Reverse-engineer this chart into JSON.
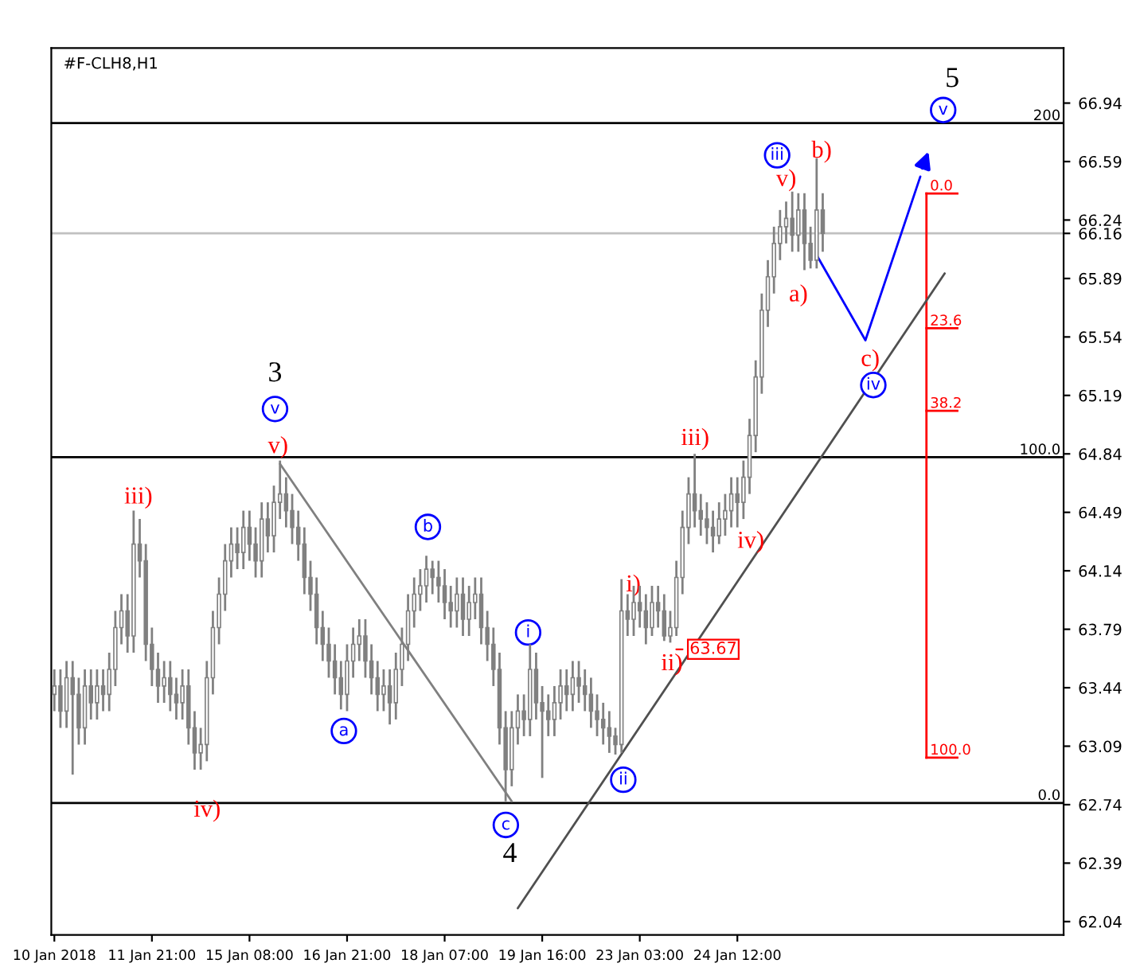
{
  "chart_data": {
    "type": "candlestick",
    "title": "#F-CLH8,H1",
    "ylim": [
      61.96,
      67.27
    ],
    "yticks": [
      62.04,
      62.39,
      62.74,
      63.09,
      63.44,
      63.79,
      64.14,
      64.49,
      64.84,
      65.19,
      65.54,
      65.89,
      66.24,
      66.59,
      66.94,
      {
        "value": 66.16,
        "label": "66.16"
      }
    ],
    "grid": false,
    "legend": false,
    "categories": [
      "10 Jan 2018",
      null,
      null,
      null,
      null,
      null,
      null,
      null,
      null,
      null,
      null,
      null,
      null,
      null,
      null,
      null,
      "11 Jan 21:00",
      null,
      null,
      null,
      null,
      null,
      null,
      null,
      null,
      null,
      null,
      null,
      null,
      null,
      null,
      null,
      "15 Jan 08:00",
      null,
      null,
      null,
      null,
      null,
      null,
      null,
      null,
      null,
      null,
      null,
      null,
      null,
      null,
      null,
      "16 Jan 21:00",
      null,
      null,
      null,
      null,
      null,
      null,
      null,
      null,
      null,
      null,
      null,
      null,
      null,
      null,
      null,
      "18 Jan 07:00",
      null,
      null,
      null,
      null,
      null,
      null,
      null,
      null,
      null,
      null,
      null,
      null,
      null,
      null,
      null,
      "19 Jan 16:00",
      null,
      null,
      null,
      null,
      null,
      null,
      null,
      null,
      null,
      null,
      null,
      null,
      null,
      null,
      null,
      "23 Jan 03:00",
      null,
      null,
      null,
      null,
      null,
      null,
      null,
      null,
      null,
      null,
      null,
      null,
      null,
      null,
      null,
      "24 Jan 12:00",
      null,
      null,
      null,
      null,
      null,
      null,
      null,
      null,
      null,
      null,
      null,
      null,
      null,
      null,
      null,
      null,
      null,
      null,
      null,
      null,
      null,
      null,
      null,
      null,
      null,
      null,
      null,
      null,
      null,
      null,
      null,
      null,
      null,
      null,
      null,
      null,
      null,
      null,
      null,
      null,
      null,
      null,
      null,
      null,
      null,
      null,
      null,
      null,
      null,
      null,
      null,
      null,
      null
    ],
    "color": "#808080",
    "ohlc": [
      [
        63.4,
        63.55,
        63.3,
        63.45
      ],
      [
        63.45,
        63.55,
        63.2,
        63.3
      ],
      [
        63.3,
        63.6,
        63.2,
        63.5
      ],
      [
        63.5,
        63.6,
        62.92,
        63.4
      ],
      [
        63.4,
        63.5,
        63.1,
        63.2
      ],
      [
        63.2,
        63.55,
        63.1,
        63.45
      ],
      [
        63.45,
        63.55,
        63.25,
        63.35
      ],
      [
        63.35,
        63.55,
        63.25,
        63.45
      ],
      [
        63.45,
        63.55,
        63.3,
        63.4
      ],
      [
        63.4,
        63.65,
        63.3,
        63.55
      ],
      [
        63.55,
        63.9,
        63.45,
        63.8
      ],
      [
        63.8,
        64.0,
        63.7,
        63.9
      ],
      [
        63.9,
        64.0,
        63.65,
        63.75
      ],
      [
        63.75,
        64.5,
        63.65,
        64.3
      ],
      [
        64.3,
        64.45,
        64.1,
        64.2
      ],
      [
        64.2,
        64.3,
        63.6,
        63.7
      ],
      [
        63.7,
        63.8,
        63.45,
        63.55
      ],
      [
        63.55,
        63.65,
        63.35,
        63.45
      ],
      [
        63.45,
        63.6,
        63.35,
        63.5
      ],
      [
        63.5,
        63.6,
        63.3,
        63.4
      ],
      [
        63.4,
        63.5,
        63.25,
        63.35
      ],
      [
        63.35,
        63.55,
        63.25,
        63.45
      ],
      [
        63.45,
        63.55,
        63.1,
        63.2
      ],
      [
        63.2,
        63.3,
        62.95,
        63.05
      ],
      [
        63.05,
        63.2,
        62.95,
        63.1
      ],
      [
        63.1,
        63.6,
        63.0,
        63.5
      ],
      [
        63.5,
        63.9,
        63.4,
        63.8
      ],
      [
        63.8,
        64.1,
        63.7,
        64.0
      ],
      [
        64.0,
        64.3,
        63.9,
        64.2
      ],
      [
        64.2,
        64.4,
        64.1,
        64.3
      ],
      [
        64.3,
        64.4,
        64.15,
        64.25
      ],
      [
        64.25,
        64.5,
        64.15,
        64.4
      ],
      [
        64.4,
        64.5,
        64.2,
        64.3
      ],
      [
        64.3,
        64.4,
        64.1,
        64.2
      ],
      [
        64.2,
        64.55,
        64.1,
        64.45
      ],
      [
        64.45,
        64.55,
        64.25,
        64.35
      ],
      [
        64.35,
        64.65,
        64.25,
        64.55
      ],
      [
        64.55,
        64.8,
        64.45,
        64.6
      ],
      [
        64.6,
        64.7,
        64.4,
        64.5
      ],
      [
        64.5,
        64.6,
        64.3,
        64.4
      ],
      [
        64.4,
        64.5,
        64.2,
        64.3
      ],
      [
        64.3,
        64.4,
        64.0,
        64.1
      ],
      [
        64.1,
        64.2,
        63.9,
        64.0
      ],
      [
        64.0,
        64.1,
        63.7,
        63.8
      ],
      [
        63.8,
        63.9,
        63.6,
        63.7
      ],
      [
        63.7,
        63.8,
        63.5,
        63.6
      ],
      [
        63.6,
        63.7,
        63.4,
        63.5
      ],
      [
        63.5,
        63.6,
        63.31,
        63.4
      ],
      [
        63.4,
        63.7,
        63.3,
        63.6
      ],
      [
        63.6,
        63.8,
        63.5,
        63.7
      ],
      [
        63.7,
        63.85,
        63.6,
        63.75
      ],
      [
        63.75,
        63.85,
        63.5,
        63.6
      ],
      [
        63.6,
        63.7,
        63.4,
        63.5
      ],
      [
        63.5,
        63.6,
        63.3,
        63.4
      ],
      [
        63.4,
        63.55,
        63.3,
        63.45
      ],
      [
        63.45,
        63.55,
        63.22,
        63.35
      ],
      [
        63.35,
        63.65,
        63.25,
        63.55
      ],
      [
        63.55,
        63.8,
        63.45,
        63.7
      ],
      [
        63.7,
        64.0,
        63.6,
        63.9
      ],
      [
        63.9,
        64.1,
        63.8,
        64.0
      ],
      [
        64.0,
        64.15,
        63.9,
        64.05
      ],
      [
        64.05,
        64.23,
        63.95,
        64.15
      ],
      [
        64.15,
        64.2,
        64.0,
        64.1
      ],
      [
        64.1,
        64.2,
        63.95,
        64.05
      ],
      [
        64.05,
        64.15,
        63.85,
        63.95
      ],
      [
        63.95,
        64.05,
        63.8,
        63.9
      ],
      [
        63.9,
        64.1,
        63.8,
        64.0
      ],
      [
        64.0,
        64.1,
        63.75,
        63.85
      ],
      [
        63.85,
        64.05,
        63.75,
        63.95
      ],
      [
        63.95,
        64.1,
        63.85,
        64.0
      ],
      [
        64.0,
        64.1,
        63.7,
        63.8
      ],
      [
        63.8,
        63.9,
        63.6,
        63.7
      ],
      [
        63.7,
        63.8,
        63.45,
        63.55
      ],
      [
        63.55,
        63.65,
        63.1,
        63.2
      ],
      [
        63.2,
        63.3,
        62.76,
        62.95
      ],
      [
        62.95,
        63.3,
        62.85,
        63.2
      ],
      [
        63.2,
        63.4,
        63.1,
        63.3
      ],
      [
        63.3,
        63.4,
        63.15,
        63.25
      ],
      [
        63.25,
        63.7,
        63.15,
        63.55
      ],
      [
        63.55,
        63.65,
        63.25,
        63.35
      ],
      [
        63.35,
        63.45,
        62.9,
        63.3
      ],
      [
        63.3,
        63.4,
        63.15,
        63.25
      ],
      [
        63.25,
        63.45,
        63.15,
        63.35
      ],
      [
        63.35,
        63.55,
        63.25,
        63.45
      ],
      [
        63.45,
        63.55,
        63.3,
        63.4
      ],
      [
        63.4,
        63.6,
        63.3,
        63.5
      ],
      [
        63.5,
        63.6,
        63.35,
        63.45
      ],
      [
        63.45,
        63.55,
        63.3,
        63.4
      ],
      [
        63.4,
        63.5,
        63.2,
        63.3
      ],
      [
        63.3,
        63.4,
        63.15,
        63.25
      ],
      [
        63.25,
        63.35,
        63.1,
        63.2
      ],
      [
        63.2,
        63.3,
        63.05,
        63.15
      ],
      [
        63.15,
        63.2,
        63.04,
        63.1
      ],
      [
        63.1,
        64.09,
        63.05,
        63.9
      ],
      [
        63.9,
        64.0,
        63.75,
        63.85
      ],
      [
        63.85,
        64.05,
        63.75,
        63.95
      ],
      [
        63.95,
        64.05,
        63.8,
        63.9
      ],
      [
        63.9,
        64.0,
        63.7,
        63.8
      ],
      [
        63.8,
        64.05,
        63.75,
        63.95
      ],
      [
        63.95,
        64.05,
        63.8,
        63.9
      ],
      [
        63.9,
        64.0,
        63.72,
        63.75
      ],
      [
        63.75,
        63.9,
        63.71,
        63.8
      ],
      [
        63.8,
        64.2,
        63.75,
        64.1
      ],
      [
        64.1,
        64.5,
        64.0,
        64.4
      ],
      [
        64.4,
        64.7,
        64.3,
        64.6
      ],
      [
        64.6,
        64.84,
        64.4,
        64.5
      ],
      [
        64.5,
        64.6,
        64.35,
        64.45
      ],
      [
        64.45,
        64.55,
        64.3,
        64.4
      ],
      [
        64.4,
        64.5,
        64.25,
        64.35
      ],
      [
        64.35,
        64.55,
        64.3,
        64.45
      ],
      [
        64.45,
        64.6,
        64.35,
        64.5
      ],
      [
        64.5,
        64.7,
        64.4,
        64.6
      ],
      [
        64.6,
        64.7,
        64.4,
        64.55
      ],
      [
        64.55,
        64.8,
        64.45,
        64.7
      ],
      [
        64.7,
        65.05,
        64.6,
        64.95
      ],
      [
        64.95,
        65.4,
        64.85,
        65.3
      ],
      [
        65.3,
        65.8,
        65.2,
        65.7
      ],
      [
        65.7,
        66.0,
        65.6,
        65.9
      ],
      [
        65.9,
        66.2,
        65.8,
        66.1
      ],
      [
        66.1,
        66.3,
        66.0,
        66.2
      ],
      [
        66.2,
        66.35,
        66.1,
        66.25
      ],
      [
        66.25,
        66.41,
        66.05,
        66.15
      ],
      [
        66.15,
        66.4,
        66.05,
        66.3
      ],
      [
        66.3,
        66.4,
        65.94,
        66.1
      ],
      [
        66.1,
        66.2,
        65.95,
        66.0
      ],
      [
        66.0,
        66.61,
        65.95,
        66.3
      ],
      [
        66.3,
        66.4,
        66.05,
        66.16
      ],
      null,
      null,
      null,
      null,
      null,
      null,
      null,
      null,
      null,
      null,
      null,
      null,
      null,
      null,
      null,
      null,
      null,
      null,
      null,
      null,
      null,
      null,
      null,
      null,
      null,
      null,
      null,
      null,
      null,
      null,
      null,
      null,
      null,
      null,
      null,
      null,
      null,
      null,
      null
    ],
    "ref_lines": [
      {
        "axis": "y",
        "value": 66.82,
        "color": "#000000"
      },
      {
        "axis": "y",
        "value": 64.82,
        "color": "#000000"
      },
      {
        "axis": "y",
        "value": 62.75,
        "color": "#000000"
      },
      {
        "axis": "y",
        "value": 66.16,
        "color": "#c0c0c0"
      }
    ],
    "annotations": [
      "3",
      "4",
      "5",
      "v",
      "a",
      "b",
      "c",
      "i",
      "ii",
      "iii",
      "iv",
      "v",
      "iii)",
      "iv)",
      "v)",
      "i)",
      "ii)",
      "iii)",
      "iv)",
      "v)",
      "a)",
      "b)",
      "c)",
      {
        "text": "200",
        "y": 66.82
      },
      {
        "text": "100.0",
        "y": 64.82
      },
      {
        "text": "0.0",
        "y": 62.75
      },
      "0.0",
      "23.6",
      "38.2",
      "100.0",
      {
        "text": "63.67",
        "y": 63.67
      }
    ],
    "series": [
      {
        "type": "line",
        "color": "#808080",
        "values": [
          null,
          null,
          null,
          null,
          null,
          null,
          null,
          null,
          null,
          null,
          null,
          null,
          null,
          null,
          null,
          null,
          null,
          null,
          null,
          null,
          null,
          null,
          null,
          null,
          null,
          null,
          null,
          null,
          null,
          null,
          null,
          null,
          null,
          null,
          null,
          null,
          null,
          64.78,
          null,
          null,
          null,
          null,
          null,
          null,
          null,
          null,
          null,
          null,
          null,
          null,
          null,
          null,
          null,
          null,
          null,
          null,
          null,
          null,
          null,
          null,
          null,
          null,
          null,
          null,
          null,
          null,
          null,
          null,
          null,
          null,
          null,
          null,
          null,
          null,
          null,
          62.76,
          null,
          null,
          null,
          null,
          null,
          null,
          null,
          null,
          null,
          null,
          null,
          null,
          null,
          null,
          null,
          null,
          null,
          null,
          null,
          null,
          null,
          null,
          null,
          null,
          null,
          null,
          null,
          null,
          null,
          null,
          null,
          null,
          null,
          null,
          null,
          null,
          null,
          null,
          null,
          null,
          null,
          null,
          null,
          null,
          null,
          null,
          null,
          null,
          null,
          null,
          null,
          null,
          null,
          null,
          null,
          null,
          null,
          null,
          null,
          null,
          null,
          null,
          null,
          null,
          null,
          null,
          null,
          null,
          null,
          null,
          null,
          null,
          null,
          null,
          null,
          null,
          null,
          null,
          null,
          null,
          null,
          null,
          null,
          null,
          null,
          null,
          null,
          null,
          null,
          null
        ]
      },
      {
        "type": "line",
        "color": "#505050",
        "values": [
          null,
          null,
          null,
          null,
          null,
          null,
          null,
          null,
          null,
          null,
          null,
          null,
          null,
          null,
          null,
          null,
          null,
          null,
          null,
          null,
          null,
          null,
          null,
          null,
          null,
          null,
          null,
          null,
          null,
          null,
          null,
          null,
          null,
          null,
          null,
          null,
          null,
          null,
          null,
          null,
          null,
          null,
          null,
          null,
          null,
          null,
          null,
          null,
          null,
          null,
          null,
          null,
          null,
          null,
          null,
          null,
          null,
          null,
          null,
          null,
          null,
          null,
          null,
          null,
          null,
          null,
          null,
          null,
          null,
          null,
          null,
          null,
          null,
          null,
          null,
          null,
          62.12,
          null,
          null,
          null,
          null,
          null,
          null,
          null,
          null,
          null,
          null,
          null,
          null,
          null,
          null,
          null,
          null,
          null,
          null,
          null,
          null,
          null,
          null,
          null,
          null,
          null,
          null,
          null,
          null,
          null,
          null,
          null,
          null,
          null,
          null,
          null,
          null,
          null,
          null,
          null,
          null,
          null,
          null,
          null,
          null,
          null,
          null,
          null,
          null,
          null,
          null,
          null,
          null,
          null,
          null,
          null,
          null,
          null,
          null,
          null,
          null,
          null,
          null,
          null,
          null,
          null,
          null,
          null,
          null,
          null,
          65.92,
          null,
          null,
          null,
          null,
          null,
          null,
          null,
          null,
          null,
          null,
          null,
          null,
          null,
          null,
          null,
          null,
          null,
          null,
          null
        ]
      },
      {
        "type": "line",
        "color": "#0000ff",
        "values": [
          null,
          null,
          null,
          null,
          null,
          null,
          null,
          null,
          null,
          null,
          null,
          null,
          null,
          null,
          null,
          null,
          null,
          null,
          null,
          null,
          null,
          null,
          null,
          null,
          null,
          null,
          null,
          null,
          null,
          null,
          null,
          null,
          null,
          null,
          null,
          null,
          null,
          null,
          null,
          null,
          null,
          null,
          null,
          null,
          null,
          null,
          null,
          null,
          null,
          null,
          null,
          null,
          null,
          null,
          null,
          null,
          null,
          null,
          null,
          null,
          null,
          null,
          null,
          null,
          null,
          null,
          null,
          null,
          null,
          null,
          null,
          null,
          null,
          null,
          null,
          null,
          null,
          null,
          null,
          null,
          null,
          null,
          null,
          null,
          null,
          null,
          null,
          null,
          null,
          null,
          null,
          null,
          null,
          null,
          null,
          null,
          null,
          null,
          null,
          null,
          null,
          null,
          null,
          null,
          null,
          null,
          null,
          null,
          null,
          null,
          null,
          null,
          null,
          null,
          null,
          null,
          null,
          null,
          null,
          null,
          null,
          null,
          null,
          null,
          null,
          66.03,
          null,
          null,
          null,
          null,
          null,
          null,
          null,
          65.52,
          null,
          null,
          null,
          null,
          null,
          null,
          null,
          null,
          66.5,
          null,
          null,
          null,
          null,
          null,
          null,
          null,
          null,
          null,
          null,
          null,
          null,
          null,
          null,
          null,
          null,
          null,
          null,
          null,
          null,
          null,
          null,
          null
        ]
      }
    ]
  }
}
